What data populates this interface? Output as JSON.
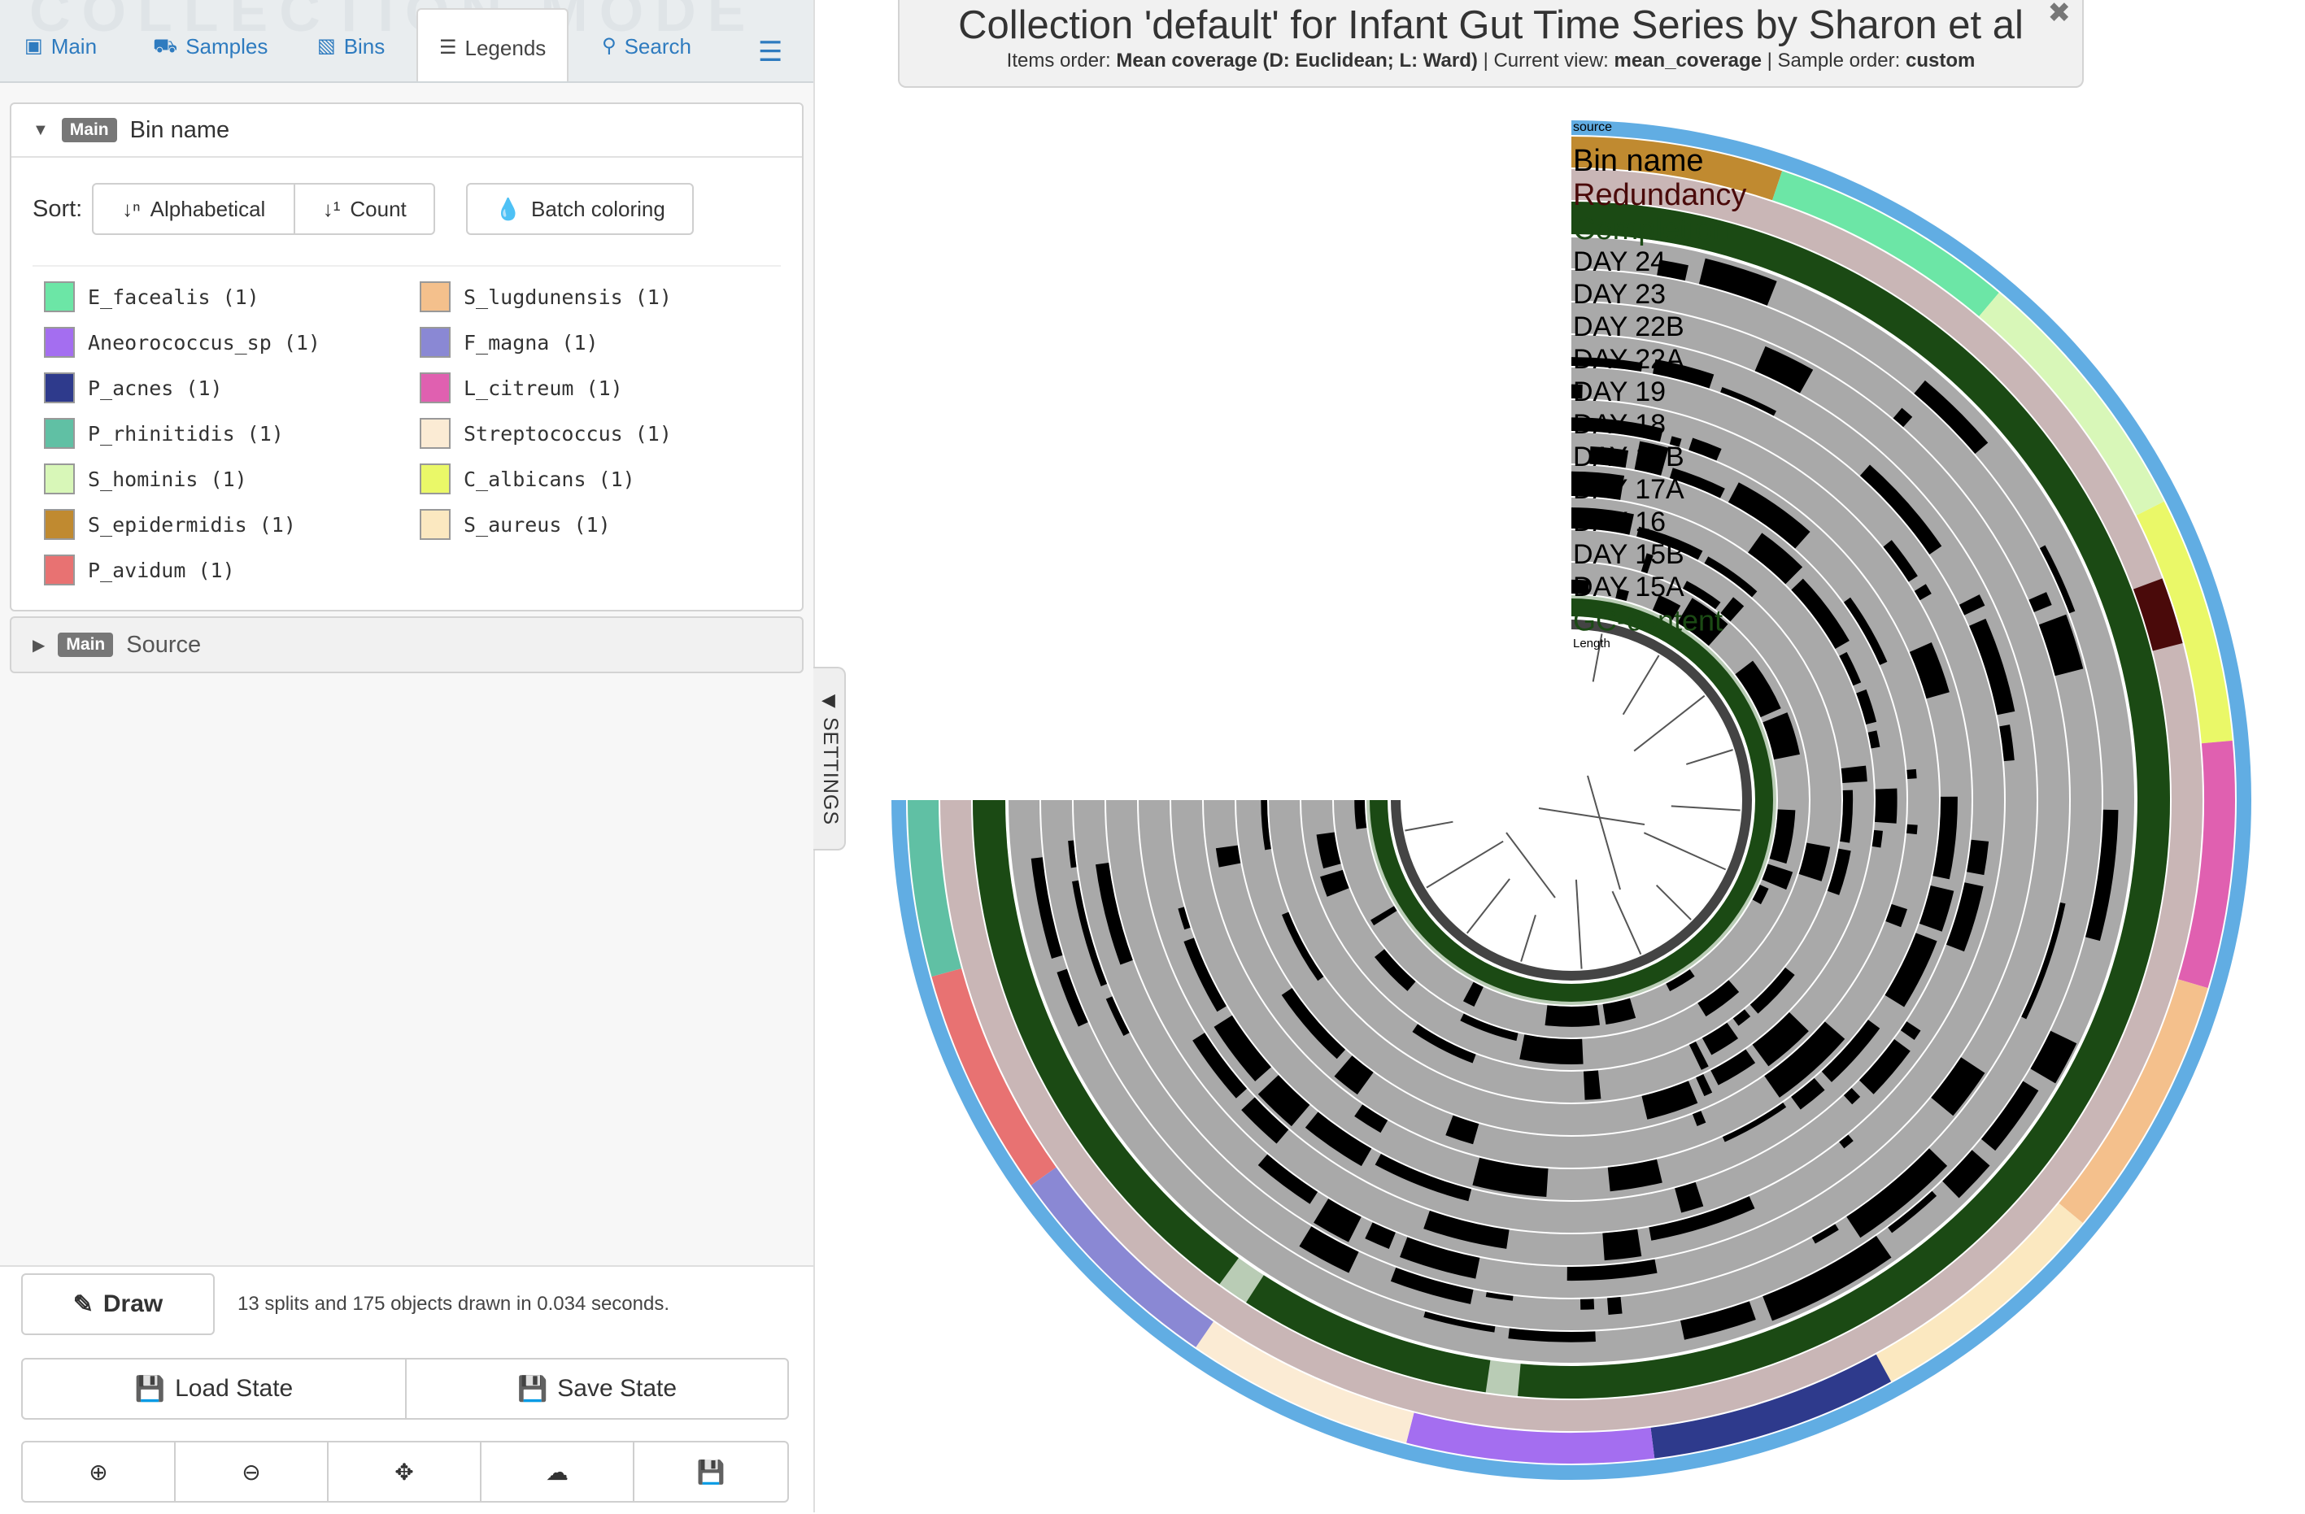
{
  "tabs": {
    "watermark": "COLLECTION MODE",
    "items": [
      {
        "label": "Main",
        "icon": "image-icon"
      },
      {
        "label": "Samples",
        "icon": "cars-icon"
      },
      {
        "label": "Bins",
        "icon": "bin-icon"
      },
      {
        "label": "Legends",
        "icon": "list-icon"
      },
      {
        "label": "Search",
        "icon": "search-icon"
      }
    ],
    "menu_icon": "hamburger-icon"
  },
  "legend_panel": {
    "badge": "Main",
    "title": "Bin name",
    "sort_label": "Sort:",
    "sort_alpha": "Alphabetical",
    "sort_count": "Count",
    "batch_coloring": "Batch coloring",
    "items": [
      {
        "label": "E_facealis (1)",
        "color": "#6ce6a6"
      },
      {
        "label": "S_lugdunensis (1)",
        "color": "#f4c08c"
      },
      {
        "label": "Aneorococcus_sp (1)",
        "color": "#a46ef0"
      },
      {
        "label": "F_magna (1)",
        "color": "#8a88d4"
      },
      {
        "label": "P_acnes (1)",
        "color": "#2e3a8c"
      },
      {
        "label": "L_citreum (1)",
        "color": "#e060b0"
      },
      {
        "label": "P_rhinitidis (1)",
        "color": "#60c0a4"
      },
      {
        "label": "Streptococcus (1)",
        "color": "#fbebd4"
      },
      {
        "label": "S_hominis (1)",
        "color": "#d8f7b8"
      },
      {
        "label": "C_albicans (1)",
        "color": "#eaf868"
      },
      {
        "label": "S_epidermidis (1)",
        "color": "#c08a30"
      },
      {
        "label": "S_aureus (1)",
        "color": "#fbe8c0"
      },
      {
        "label": "P_avidum (1)",
        "color": "#e87272"
      }
    ]
  },
  "source_panel": {
    "badge": "Main",
    "title": "Source"
  },
  "controls": {
    "draw_label": "Draw",
    "draw_status": "13 splits and 175 objects drawn in 0.034 seconds.",
    "load_state": "Load State",
    "save_state": "Save State",
    "icon_buttons": [
      "zoom-in-icon",
      "zoom-out-icon",
      "center-icon",
      "download-icon",
      "save-icon"
    ]
  },
  "settings_tab": "SETTINGS",
  "title_box": {
    "title": "Collection 'default' for Infant Gut Time Series by Sharon et al",
    "items_order_label": "Items order:",
    "items_order_value": "Mean coverage (D: Euclidean; L: Ward)",
    "current_view_label": "Current view:",
    "current_view_value": "mean_coverage",
    "sample_order_label": "Sample order:",
    "sample_order_value": "custom"
  },
  "layers": [
    {
      "name": "source",
      "kind": "source",
      "color": "#61ade3"
    },
    {
      "name": "Bin name",
      "kind": "bin",
      "color": "#000000"
    },
    {
      "name": "Redundancy",
      "kind": "redundancy",
      "color": "#4a0a0a"
    },
    {
      "name": "Completion",
      "kind": "completion",
      "color": "#1b4a14"
    },
    {
      "name": "DAY 24",
      "kind": "coverage",
      "color": "#000000"
    },
    {
      "name": "DAY 23",
      "kind": "coverage",
      "color": "#000000"
    },
    {
      "name": "DAY 22B",
      "kind": "coverage",
      "color": "#000000"
    },
    {
      "name": "DAY 22A",
      "kind": "coverage",
      "color": "#000000"
    },
    {
      "name": "DAY 19",
      "kind": "coverage",
      "color": "#000000"
    },
    {
      "name": "DAY 18",
      "kind": "coverage",
      "color": "#000000"
    },
    {
      "name": "DAY 17B",
      "kind": "coverage",
      "color": "#000000"
    },
    {
      "name": "DAY 17A",
      "kind": "coverage",
      "color": "#000000"
    },
    {
      "name": "DAY 16",
      "kind": "coverage",
      "color": "#000000"
    },
    {
      "name": "DAY 15B",
      "kind": "coverage",
      "color": "#000000"
    },
    {
      "name": "DAY 15A",
      "kind": "coverage",
      "color": "#000000"
    },
    {
      "name": "GC-content",
      "kind": "gc",
      "color": "#1b4a14"
    },
    {
      "name": "Length",
      "kind": "length",
      "color": "#444444"
    }
  ],
  "bins_in_ring_order": [
    "S_epidermidis",
    "E_facealis",
    "S_hominis",
    "C_albicans",
    "L_citreum",
    "S_lugdunensis",
    "S_aureus",
    "P_acnes",
    "Aneorococcus_sp",
    "Streptococcus",
    "F_magna",
    "P_avidum",
    "P_rhinitidis"
  ],
  "ring_colors": {
    "redundancy_bg": "#c9b6b6",
    "coverage_bg": "#a9a9a9",
    "completion_bg": "#b9ccb5",
    "bar": "#000000",
    "dark_green": "#1b4a14",
    "dark_red": "#4a0a0a"
  }
}
